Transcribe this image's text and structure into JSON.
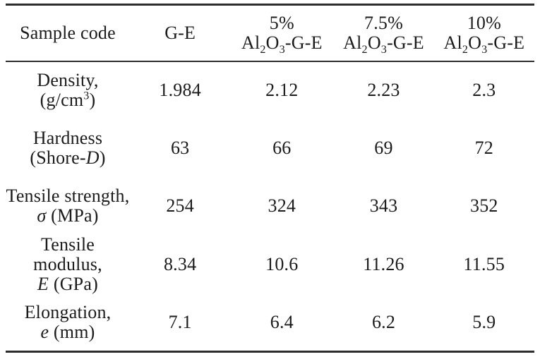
{
  "colors": {
    "text": "#1b1b1b",
    "rule": "#2d2d2d",
    "background": "#ffffff"
  },
  "table": {
    "columns": [
      {
        "name": "sample-code",
        "label": [
          {
            "t": "Sample code"
          }
        ]
      },
      {
        "name": "g-e",
        "label": [
          {
            "t": "G-E"
          }
        ]
      },
      {
        "name": "al2o3-5pct-g-e",
        "label": [
          {
            "t": "5%",
            "br": true
          },
          {
            "t": "Al"
          },
          {
            "sub": "2"
          },
          {
            "t": "O"
          },
          {
            "sub": "3"
          },
          {
            "t": "-G-E"
          }
        ]
      },
      {
        "name": "al2o3-7-5pct-g-e",
        "label": [
          {
            "t": "7.5%",
            "br": true
          },
          {
            "t": "Al"
          },
          {
            "sub": "2"
          },
          {
            "t": "O"
          },
          {
            "sub": "3"
          },
          {
            "t": "-G-E"
          }
        ]
      },
      {
        "name": "al2o3-10pct-g-e",
        "label": [
          {
            "t": "10%",
            "br": true
          },
          {
            "t": "Al"
          },
          {
            "sub": "2"
          },
          {
            "t": "O"
          },
          {
            "sub": "3"
          },
          {
            "t": "-G-E"
          }
        ]
      }
    ],
    "rows": [
      {
        "name": "density",
        "label": [
          {
            "t": "Density,",
            "br": true
          },
          {
            "t": "(g/cm"
          },
          {
            "sup": "3"
          },
          {
            "t": ")"
          }
        ],
        "values": [
          "1.984",
          "2.12",
          "2.23",
          "2.3"
        ]
      },
      {
        "name": "hardness",
        "label": [
          {
            "t": "Hardness",
            "br": true
          },
          {
            "t": "(Shore-"
          },
          {
            "t": "D",
            "i": true
          },
          {
            "t": ")"
          }
        ],
        "values": [
          "63",
          "66",
          "69",
          "72"
        ]
      },
      {
        "name": "tensile-strength",
        "label": [
          {
            "t": "Tensile strength,",
            "br": true
          },
          {
            "t": "σ",
            "i": true
          },
          {
            "t": " (MPa)"
          }
        ],
        "values": [
          "254",
          "324",
          "343",
          "352"
        ]
      },
      {
        "name": "tensile-modulus",
        "label": [
          {
            "t": "Tensile modulus,",
            "br": true
          },
          {
            "t": "E",
            "i": true
          },
          {
            "t": " (GPa)"
          }
        ],
        "values": [
          "8.34",
          "10.6",
          "11.26",
          "11.55"
        ]
      },
      {
        "name": "elongation",
        "label": [
          {
            "t": "Elongation,",
            "br": true
          },
          {
            "t": "e",
            "i": true
          },
          {
            "t": " (mm)"
          }
        ],
        "values": [
          "7.1",
          "6.4",
          "6.2",
          "5.9"
        ]
      }
    ]
  }
}
